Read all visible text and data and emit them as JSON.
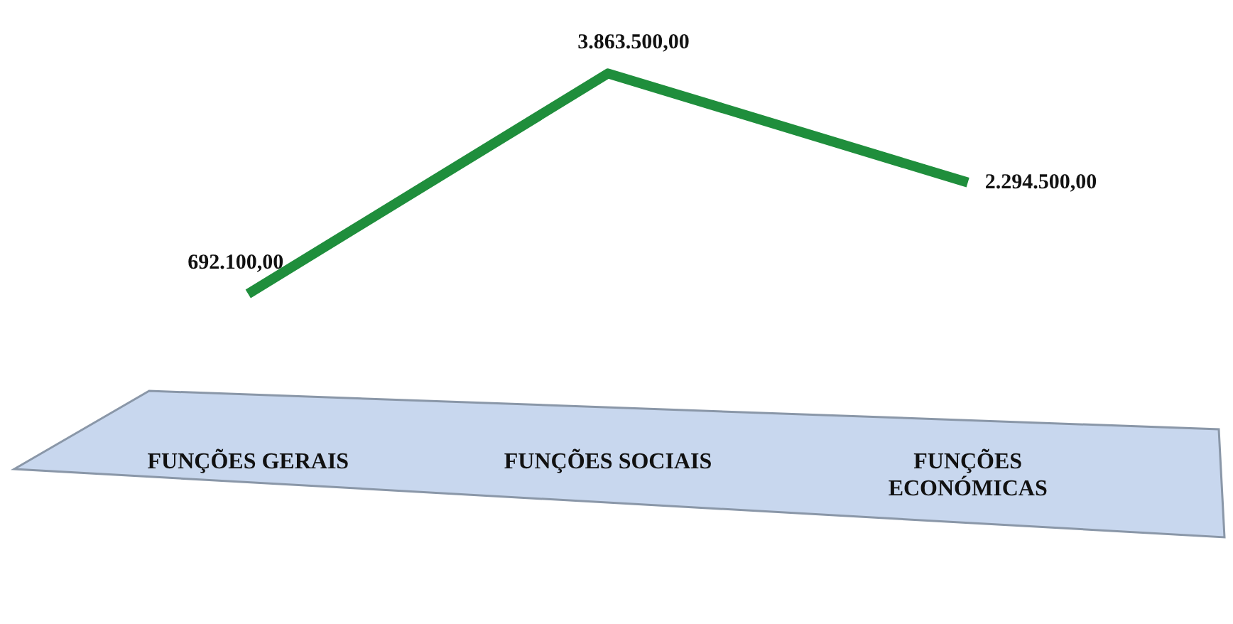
{
  "chart_data": {
    "type": "line",
    "categories": [
      "FUNÇÕES GERAIS",
      "FUNÇÕES SOCIAIS",
      "FUNÇÕES ECONÓMICAS"
    ],
    "values": [
      692100,
      3863500,
      2294500
    ],
    "value_labels": [
      "692.100,00",
      "3.863.500,00",
      "2.294.500,00"
    ],
    "color": "#1f8e3c",
    "relative": false,
    "marker": "none",
    "grid": false,
    "legend": false
  }
}
